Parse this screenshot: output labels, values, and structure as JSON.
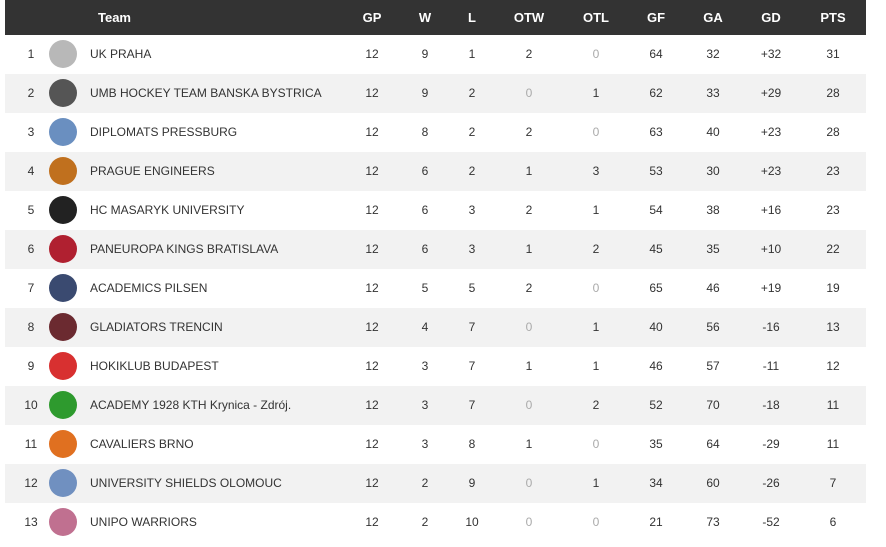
{
  "table": {
    "header": [
      "Team",
      "GP",
      "W",
      "L",
      "OTW",
      "OTL",
      "GF",
      "GA",
      "GD",
      "PTS"
    ],
    "rows": [
      [
        1,
        "UK PRAHA",
        12,
        9,
        1,
        2,
        0,
        64,
        32,
        "+32",
        31
      ],
      [
        2,
        "UMB HOCKEY TEAM BANSKA BYSTRICA",
        12,
        9,
        2,
        0,
        1,
        62,
        33,
        "+29",
        28
      ],
      [
        3,
        "DIPLOMATS PRESSBURG",
        12,
        8,
        2,
        2,
        0,
        63,
        40,
        "+23",
        28
      ],
      [
        4,
        "PRAGUE ENGINEERS",
        12,
        6,
        2,
        1,
        3,
        53,
        30,
        "+23",
        23
      ],
      [
        5,
        "HC MASARYK UNIVERSITY",
        12,
        6,
        3,
        2,
        1,
        54,
        38,
        "+16",
        23
      ],
      [
        6,
        "PANEUROPA KINGS BRATISLAVA",
        12,
        6,
        3,
        1,
        2,
        45,
        35,
        "+10",
        22
      ],
      [
        7,
        "ACADEMICS PILSEN",
        12,
        5,
        5,
        2,
        0,
        65,
        46,
        "+19",
        19
      ],
      [
        8,
        "GLADIATORS TRENCIN",
        12,
        4,
        7,
        0,
        1,
        40,
        56,
        "-16",
        13
      ],
      [
        9,
        "HOKIKLUB BUDAPEST",
        12,
        3,
        7,
        1,
        1,
        46,
        57,
        "-11",
        12
      ],
      [
        10,
        "ACADEMY 1928 KTH Krynica - Zdrój.",
        12,
        3,
        7,
        0,
        2,
        52,
        70,
        "-18",
        11
      ],
      [
        11,
        "CAVALIERS BRNO",
        12,
        3,
        8,
        1,
        0,
        35,
        64,
        "-29",
        11
      ],
      [
        12,
        "UNIVERSITY SHIELDS OLOMOUC",
        12,
        2,
        9,
        0,
        1,
        34,
        60,
        "-26",
        7
      ],
      [
        13,
        "UNIPO WARRIORS",
        12,
        2,
        10,
        0,
        0,
        21,
        73,
        "-52",
        6
      ]
    ]
  }
}
